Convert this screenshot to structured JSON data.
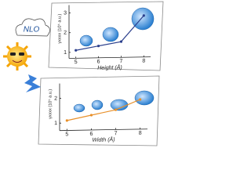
{
  "badge": {
    "text": "NLO"
  },
  "chart_data": [
    {
      "type": "line",
      "x_label": "Height (Å)",
      "y_label": "γxxxx (10⁵ a.u.)",
      "x": [
        5,
        6,
        7,
        8
      ],
      "xlim": [
        4.7,
        8.3
      ],
      "xticks": [
        5,
        6,
        7,
        8
      ],
      "ylim": [
        0.7,
        3.4
      ],
      "yticks": [
        1,
        2,
        3
      ],
      "series": [
        {
          "color": "#2b3f8c",
          "values": [
            1.1,
            1.3,
            1.5,
            2.8
          ]
        }
      ]
    },
    {
      "type": "line",
      "x_label": "Width (Å)",
      "y_label": "γxxxx (10⁵ a.u.)",
      "x": [
        5,
        6,
        7,
        8
      ],
      "xlim": [
        4.7,
        8.3
      ],
      "xticks": [
        5,
        6,
        7,
        8
      ],
      "ylim": [
        0.7,
        2.6
      ],
      "yticks": [
        1,
        2
      ],
      "series": [
        {
          "color": "#e8902a",
          "values": [
            1.1,
            1.3,
            1.5,
            1.9
          ]
        }
      ]
    }
  ]
}
